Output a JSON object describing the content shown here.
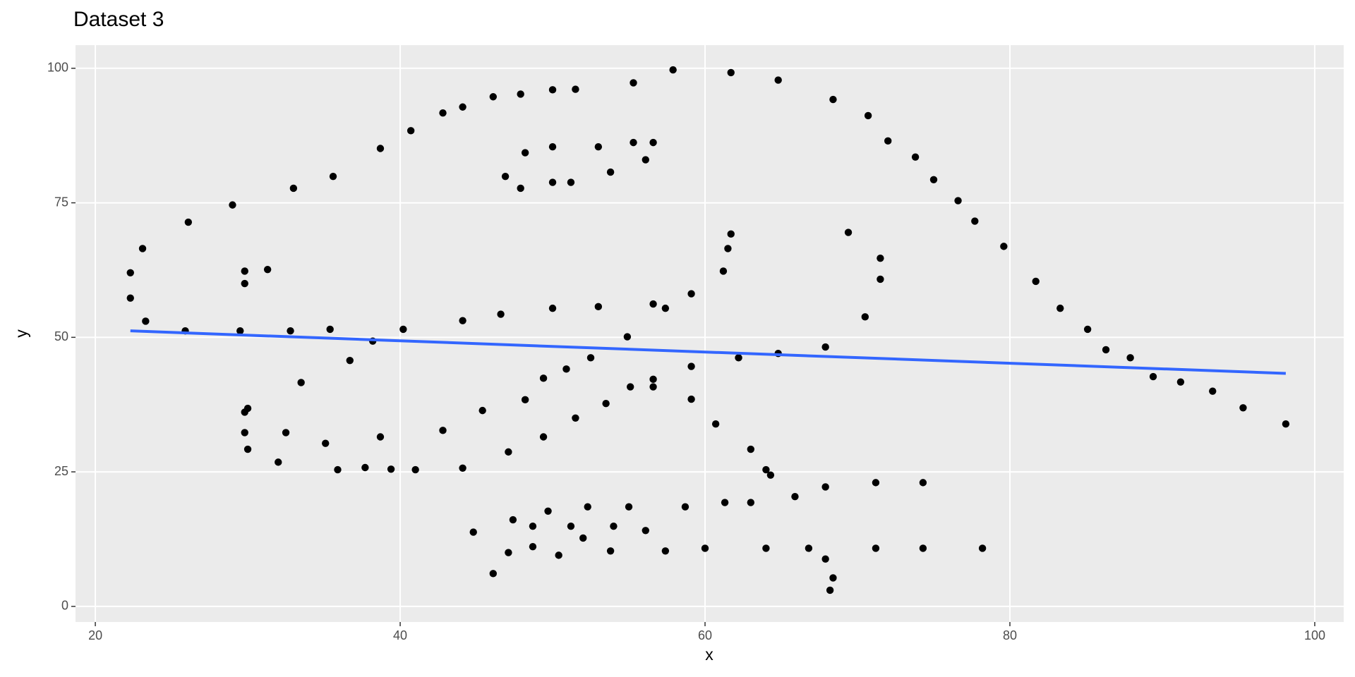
{
  "chart_data": {
    "type": "scatter",
    "title": "Dataset 3",
    "x_label": "x",
    "y_label": "y",
    "x": [
      22.3,
      22.3,
      23.1,
      23.3,
      25.9,
      26.1,
      29.0,
      29.5,
      29.8,
      29.8,
      29.8,
      30.0,
      29.8,
      30.0,
      31.3,
      32.0,
      32.5,
      32.8,
      33.0,
      33.5,
      35.1,
      35.4,
      35.6,
      35.9,
      36.7,
      37.7,
      38.2,
      38.7,
      38.7,
      39.4,
      40.2,
      40.7,
      41.0,
      42.8,
      42.8,
      44.1,
      44.1,
      44.1,
      44.8,
      45.4,
      46.1,
      46.1,
      46.6,
      46.9,
      47.1,
      47.1,
      47.4,
      47.9,
      47.9,
      48.2,
      48.2,
      48.7,
      48.7,
      49.4,
      49.4,
      49.7,
      50.0,
      50.0,
      50.0,
      50.0,
      50.4,
      50.9,
      51.2,
      51.2,
      51.5,
      51.5,
      52.0,
      52.3,
      52.5,
      53.0,
      53.0,
      53.5,
      53.8,
      53.8,
      54.0,
      54.9,
      55.0,
      55.1,
      55.3,
      55.3,
      56.1,
      56.1,
      56.6,
      56.6,
      56.6,
      56.6,
      57.4,
      57.4,
      57.9,
      58.7,
      59.1,
      59.1,
      59.1,
      60.0,
      60.7,
      61.2,
      61.3,
      61.5,
      61.7,
      61.7,
      62.2,
      63.0,
      63.0,
      64.0,
      64.3,
      64.0,
      64.8,
      64.8,
      65.9,
      66.8,
      67.9,
      67.9,
      67.9,
      68.2,
      68.4,
      68.4,
      69.4,
      70.5,
      70.7,
      71.2,
      71.2,
      71.5,
      71.5,
      72.0,
      73.8,
      74.3,
      74.3,
      75.0,
      76.6,
      77.7,
      78.2,
      79.6,
      81.7,
      83.3,
      85.1,
      86.3,
      87.9,
      89.4,
      91.2,
      93.3,
      95.3,
      98.1
    ],
    "values": [
      62.0,
      57.3,
      66.5,
      53.0,
      51.2,
      71.4,
      74.6,
      51.2,
      62.3,
      60.0,
      36.1,
      36.8,
      32.3,
      29.2,
      62.6,
      26.8,
      32.3,
      51.2,
      77.7,
      41.6,
      30.3,
      51.5,
      79.9,
      25.4,
      45.7,
      25.8,
      49.3,
      31.5,
      85.1,
      25.5,
      51.5,
      88.4,
      25.4,
      91.7,
      32.7,
      92.8,
      53.1,
      25.7,
      13.8,
      36.4,
      94.7,
      6.1,
      54.3,
      79.9,
      28.7,
      10.0,
      16.1,
      95.2,
      77.7,
      38.4,
      84.3,
      14.9,
      11.1,
      31.5,
      42.4,
      17.7,
      96.0,
      85.4,
      78.8,
      55.4,
      9.5,
      44.1,
      78.8,
      14.9,
      96.1,
      35.0,
      12.7,
      18.5,
      46.2,
      85.4,
      55.7,
      37.7,
      80.7,
      10.3,
      14.9,
      50.1,
      18.5,
      40.8,
      97.3,
      86.2,
      14.1,
      83.0,
      86.2,
      56.2,
      42.2,
      40.8,
      55.4,
      10.3,
      99.7,
      18.5,
      58.1,
      44.6,
      38.5,
      10.8,
      33.9,
      62.3,
      19.3,
      66.5,
      69.2,
      99.2,
      46.2,
      29.2,
      19.3,
      25.4,
      24.4,
      10.8,
      97.8,
      47.0,
      20.4,
      10.8,
      48.2,
      22.2,
      8.8,
      3.0,
      94.2,
      5.3,
      69.5,
      53.8,
      91.2,
      23.0,
      10.8,
      64.7,
      60.8,
      86.5,
      83.5,
      23.0,
      10.8,
      79.3,
      75.4,
      71.6,
      10.8,
      66.9,
      60.4,
      55.4,
      51.5,
      47.7,
      46.2,
      42.7,
      41.7,
      40.0,
      36.9,
      33.9
    ],
    "color": "#000000",
    "trend_line": {
      "color": "#3366FF",
      "x": [
        22.3,
        98.1
      ],
      "values": [
        51.2,
        43.3
      ]
    },
    "xlim": [
      18.7,
      101.9
    ],
    "ylim": [
      -2.9,
      104.3
    ],
    "xticks": [
      20,
      40,
      60,
      80,
      100
    ],
    "yticks": [
      0,
      25,
      50,
      75,
      100
    ],
    "grid": true
  }
}
